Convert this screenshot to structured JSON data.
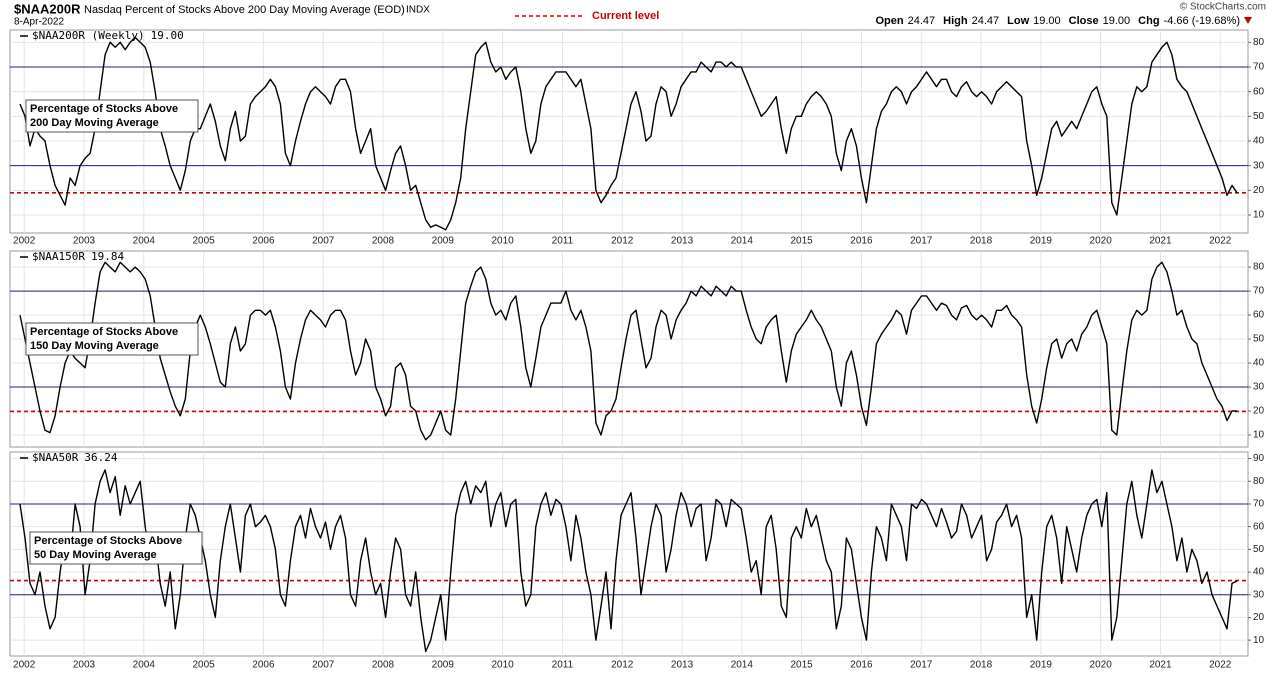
{
  "header": {
    "symbol": "$NAA200R",
    "description": "Nasdaq Percent of Stocks Above 200 Day Moving Average (EOD)",
    "exchange": "INDX",
    "date": "8-Apr-2022",
    "credit": "© StockCharts.com",
    "legend": "Current level",
    "quote": [
      {
        "label": "Open",
        "value": "24.47"
      },
      {
        "label": "High",
        "value": "24.47"
      },
      {
        "label": "Low",
        "value": "19.00"
      },
      {
        "label": "Close",
        "value": "19.00"
      },
      {
        "label": "Chg",
        "value": "-4.66 (-19.68%)"
      }
    ]
  },
  "chart_data": [
    {
      "type": "line",
      "name": "$NAA200R (Weekly)",
      "current_level": {
        "value": 19,
        "label": "19.00"
      },
      "color": "#000000",
      "current_color": "#cc0000",
      "reference_color": "#1a237e",
      "annotation": [
        "Percentage of Stocks Above",
        "200 Day Moving Average"
      ],
      "xlim": [
        2001.93,
        2022.28
      ],
      "xticks": [
        2002,
        2003,
        2004,
        2005,
        2006,
        2007,
        2008,
        2009,
        2010,
        2011,
        2012,
        2013,
        2014,
        2015,
        2016,
        2017,
        2018,
        2019,
        2020,
        2021,
        2022
      ],
      "ylim": [
        2.7,
        85
      ],
      "yticks": [
        10,
        20,
        30,
        40,
        50,
        60,
        70,
        80
      ],
      "reference_lines": [
        30,
        70
      ],
      "grid": true,
      "values": [
        55,
        50,
        38,
        45,
        42,
        40,
        30,
        22,
        18,
        14,
        25,
        22,
        30,
        33,
        35,
        45,
        60,
        75,
        80,
        78,
        80,
        77,
        80,
        82,
        80,
        78,
        72,
        60,
        45,
        38,
        30,
        25,
        20,
        28,
        40,
        45,
        45,
        50,
        55,
        48,
        38,
        32,
        45,
        52,
        40,
        42,
        55,
        58,
        60,
        62,
        65,
        62,
        55,
        35,
        30,
        40,
        48,
        55,
        60,
        62,
        60,
        58,
        55,
        62,
        65,
        65,
        60,
        45,
        35,
        40,
        45,
        30,
        25,
        20,
        28,
        35,
        38,
        30,
        20,
        22,
        15,
        8,
        5,
        6,
        5,
        4,
        8,
        15,
        25,
        45,
        60,
        75,
        78,
        80,
        72,
        68,
        70,
        65,
        68,
        70,
        60,
        45,
        35,
        40,
        55,
        62,
        65,
        68,
        68,
        68,
        65,
        62,
        65,
        55,
        45,
        20,
        15,
        18,
        22,
        25,
        35,
        45,
        55,
        60,
        52,
        40,
        42,
        55,
        62,
        60,
        50,
        55,
        62,
        65,
        68,
        68,
        72,
        70,
        68,
        72,
        72,
        70,
        72,
        70,
        70,
        65,
        60,
        55,
        50,
        52,
        55,
        58,
        45,
        35,
        45,
        50,
        50,
        55,
        58,
        60,
        58,
        55,
        50,
        35,
        28,
        40,
        45,
        38,
        25,
        15,
        30,
        45,
        52,
        55,
        60,
        62,
        60,
        55,
        60,
        62,
        65,
        68,
        65,
        62,
        65,
        65,
        60,
        58,
        62,
        64,
        60,
        58,
        60,
        58,
        55,
        60,
        62,
        64,
        62,
        60,
        58,
        40,
        30,
        18,
        25,
        35,
        45,
        48,
        42,
        45,
        48,
        45,
        50,
        55,
        60,
        62,
        55,
        50,
        15,
        10,
        25,
        40,
        55,
        62,
        60,
        62,
        72,
        75,
        78,
        80,
        75,
        65,
        62,
        60,
        55,
        50,
        45,
        40,
        35,
        30,
        25,
        18,
        22,
        19
      ]
    },
    {
      "type": "line",
      "name": "$NAA150R",
      "current_level": 19.84,
      "color": "#000000",
      "current_color": "#cc0000",
      "reference_color": "#1a237e",
      "annotation": [
        "Percentage of Stocks Above",
        "150 Day Moving Average"
      ],
      "xlim": [
        2001.93,
        2022.28
      ],
      "ylim": [
        5,
        86.7
      ],
      "yticks": [
        10,
        20,
        30,
        40,
        50,
        60,
        70,
        80
      ],
      "reference_lines": [
        30,
        70
      ],
      "grid": true,
      "values": [
        60,
        50,
        40,
        30,
        20,
        12,
        11,
        18,
        30,
        40,
        45,
        42,
        40,
        38,
        50,
        65,
        78,
        82,
        80,
        78,
        82,
        80,
        78,
        80,
        78,
        75,
        68,
        55,
        42,
        35,
        28,
        22,
        18,
        25,
        45,
        55,
        60,
        55,
        48,
        40,
        32,
        30,
        48,
        55,
        45,
        48,
        60,
        62,
        62,
        60,
        62,
        55,
        45,
        30,
        25,
        40,
        50,
        58,
        62,
        60,
        58,
        55,
        60,
        62,
        62,
        58,
        45,
        35,
        40,
        50,
        45,
        30,
        25,
        18,
        22,
        38,
        40,
        35,
        22,
        20,
        12,
        8,
        10,
        15,
        20,
        12,
        10,
        25,
        45,
        65,
        72,
        78,
        80,
        75,
        65,
        60,
        62,
        58,
        65,
        68,
        55,
        38,
        30,
        42,
        55,
        60,
        65,
        65,
        65,
        70,
        62,
        58,
        62,
        55,
        45,
        15,
        10,
        18,
        20,
        25,
        38,
        50,
        60,
        62,
        50,
        38,
        42,
        55,
        62,
        60,
        50,
        58,
        62,
        65,
        70,
        68,
        72,
        70,
        68,
        72,
        70,
        68,
        72,
        70,
        70,
        62,
        55,
        50,
        48,
        55,
        58,
        60,
        45,
        32,
        45,
        52,
        55,
        58,
        62,
        58,
        55,
        50,
        45,
        30,
        22,
        40,
        45,
        35,
        22,
        14,
        30,
        48,
        52,
        55,
        58,
        62,
        60,
        52,
        62,
        65,
        68,
        68,
        65,
        62,
        65,
        64,
        60,
        58,
        63,
        64,
        60,
        58,
        60,
        58,
        55,
        62,
        62,
        64,
        60,
        58,
        55,
        35,
        22,
        15,
        25,
        38,
        48,
        50,
        42,
        48,
        50,
        45,
        52,
        55,
        60,
        62,
        55,
        48,
        12,
        10,
        28,
        45,
        58,
        62,
        60,
        62,
        75,
        80,
        82,
        78,
        70,
        60,
        62,
        55,
        50,
        48,
        40,
        35,
        30,
        25,
        22,
        16,
        20,
        20
      ]
    },
    {
      "type": "line",
      "name": "$NAA50R",
      "current_level": 36.24,
      "color": "#000000",
      "current_color": "#cc0000",
      "reference_color": "#1a237e",
      "annotation": [
        "Percentage of Stocks Above",
        "50 Day Moving Average"
      ],
      "xlim": [
        2001.93,
        2022.28
      ],
      "xticks": [
        2002,
        2003,
        2004,
        2005,
        2006,
        2007,
        2008,
        2009,
        2010,
        2011,
        2012,
        2013,
        2014,
        2015,
        2016,
        2017,
        2018,
        2019,
        2020,
        2021,
        2022
      ],
      "ylim": [
        3,
        92.9
      ],
      "yticks": [
        10,
        20,
        30,
        40,
        50,
        60,
        70,
        80,
        90
      ],
      "reference_lines": [
        30,
        70
      ],
      "grid": true,
      "values": [
        70,
        55,
        35,
        30,
        40,
        25,
        15,
        20,
        40,
        55,
        45,
        70,
        60,
        30,
        45,
        70,
        80,
        85,
        75,
        82,
        65,
        78,
        70,
        75,
        80,
        60,
        45,
        55,
        35,
        25,
        40,
        15,
        30,
        55,
        70,
        65,
        55,
        45,
        30,
        20,
        45,
        60,
        70,
        55,
        40,
        65,
        70,
        60,
        62,
        65,
        60,
        50,
        30,
        25,
        45,
        60,
        65,
        55,
        68,
        60,
        55,
        62,
        50,
        60,
        65,
        55,
        30,
        25,
        45,
        55,
        40,
        30,
        35,
        20,
        40,
        55,
        50,
        30,
        25,
        40,
        20,
        5,
        10,
        20,
        30,
        10,
        40,
        65,
        75,
        80,
        70,
        78,
        75,
        80,
        60,
        70,
        75,
        60,
        70,
        72,
        40,
        25,
        30,
        60,
        70,
        75,
        65,
        72,
        70,
        60,
        45,
        65,
        55,
        40,
        30,
        10,
        25,
        40,
        15,
        45,
        65,
        70,
        75,
        55,
        30,
        45,
        60,
        70,
        65,
        40,
        50,
        65,
        75,
        70,
        60,
        68,
        70,
        45,
        55,
        72,
        70,
        60,
        72,
        70,
        68,
        55,
        40,
        45,
        30,
        60,
        65,
        50,
        25,
        20,
        55,
        60,
        55,
        68,
        60,
        65,
        55,
        45,
        40,
        15,
        25,
        55,
        50,
        35,
        20,
        10,
        40,
        60,
        55,
        45,
        70,
        65,
        60,
        45,
        70,
        68,
        72,
        70,
        65,
        60,
        68,
        62,
        55,
        58,
        70,
        65,
        55,
        60,
        65,
        45,
        50,
        62,
        65,
        70,
        60,
        65,
        55,
        20,
        30,
        10,
        40,
        60,
        65,
        55,
        35,
        60,
        50,
        40,
        55,
        65,
        70,
        72,
        60,
        75,
        10,
        20,
        45,
        70,
        80,
        65,
        55,
        70,
        85,
        75,
        80,
        70,
        60,
        45,
        55,
        40,
        50,
        45,
        35,
        40,
        30,
        25,
        20,
        15,
        35,
        36
      ]
    }
  ]
}
